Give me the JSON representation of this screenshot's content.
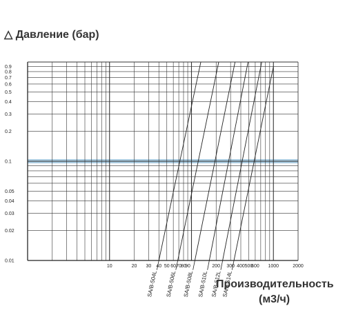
{
  "chart_data": {
    "type": "line",
    "ylabel": "△ Давление (бар)",
    "xlabel": "Производительность",
    "xunit": "(м3/ч)",
    "xscale": "log",
    "yscale": "log",
    "xlim": [
      1,
      2000
    ],
    "ylim": [
      0.01,
      1
    ],
    "x_ticks": [
      "10",
      "20",
      "30",
      "40",
      "50",
      "60",
      "70",
      "80",
      "90",
      "200",
      "300",
      "400",
      "500",
      "600",
      "1000",
      "2000"
    ],
    "y_ticks": [
      "0.9",
      "0.8",
      "0.7",
      "0.6",
      "0.5",
      "0.4",
      "0.3",
      "0.2",
      "0.1",
      "0.05",
      "0.04",
      "0.03",
      "0.02",
      "0.01"
    ],
    "highlight_y": 0.1,
    "highlight_color": "#a9cbe0",
    "grid": true,
    "series": [
      {
        "name": "SA/B-504L",
        "x": [
          40,
          130
        ],
        "y": [
          0.01,
          1
        ]
      },
      {
        "name": "SA/B-506L",
        "x": [
          68,
          215
        ],
        "y": [
          0.01,
          1
        ]
      },
      {
        "name": "SA/B-508L",
        "x": [
          110,
          340
        ],
        "y": [
          0.01,
          1
        ]
      },
      {
        "name": "SA/B-510L",
        "x": [
          165,
          490
        ],
        "y": [
          0.01,
          1
        ]
      },
      {
        "name": "SA/B-512L",
        "x": [
          240,
          720
        ],
        "y": [
          0.01,
          1
        ]
      },
      {
        "name": "SA/B-514L",
        "x": [
          330,
          1000
        ],
        "y": [
          0.01,
          0.9
        ]
      }
    ]
  }
}
